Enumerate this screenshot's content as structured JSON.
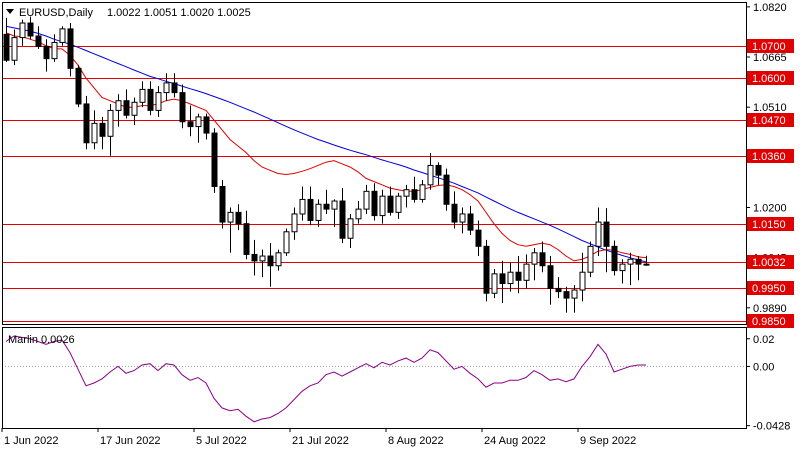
{
  "chart_data": [
    {
      "type": "candlestick",
      "symbol_label": "EURUSD,Daily",
      "ohlc_label": "1.0022 1.0051 1.0020 1.0025",
      "ylim": [
        0.984,
        1.0835
      ],
      "y_ticks": [
        "1.0820",
        "1.0665",
        "1.0510",
        "1.0360",
        "1.0200",
        "1.0045",
        "0.9890"
      ],
      "x_ticks": [
        "1 Jun 2022",
        "17 Jun 2022",
        "5 Jul 2022",
        "21 Jul 2022",
        "8 Aug 2022",
        "24 Aug 2022",
        "9 Sep 2022"
      ],
      "levels": [
        {
          "value": 1.07,
          "label": "1.0700"
        },
        {
          "value": 1.06,
          "label": "1.0600"
        },
        {
          "value": 1.047,
          "label": "1.0470"
        },
        {
          "value": 1.036,
          "label": "1.0360"
        },
        {
          "value": 1.015,
          "label": "1.0150"
        },
        {
          "value": 1.0032,
          "label": "1.0032"
        },
        {
          "value": 0.995,
          "label": "0.9950"
        },
        {
          "value": 0.985,
          "label": "0.9850"
        }
      ],
      "level_color": "#e00000",
      "ma_fast_color": "#e00000",
      "ma_slow_color": "#0000e0",
      "candles": [
        [
          1.0735,
          1.0786,
          1.065,
          1.0655
        ],
        [
          1.0655,
          1.075,
          1.064,
          1.0725
        ],
        [
          1.0725,
          1.078,
          1.07,
          1.077
        ],
        [
          1.077,
          1.079,
          1.072,
          1.073
        ],
        [
          1.073,
          1.076,
          1.069,
          1.0698
        ],
        [
          1.0698,
          1.072,
          1.062,
          1.066
        ],
        [
          1.066,
          1.0735,
          1.065,
          1.071
        ],
        [
          1.071,
          1.076,
          1.07,
          1.0752
        ],
        [
          1.0752,
          1.077,
          1.0605,
          1.063
        ],
        [
          1.063,
          1.064,
          1.051,
          1.052
        ],
        [
          1.052,
          1.0545,
          1.038,
          1.04
        ],
        [
          1.04,
          1.05,
          1.038,
          1.046
        ],
        [
          1.046,
          1.048,
          1.038,
          1.042
        ],
        [
          1.042,
          1.052,
          1.036,
          1.05
        ],
        [
          1.05,
          1.055,
          1.045,
          1.053
        ],
        [
          1.053,
          1.0565,
          1.0475,
          1.0485
        ],
        [
          1.0485,
          1.054,
          1.0455,
          1.0525
        ],
        [
          1.0525,
          1.059,
          1.051,
          1.0565
        ],
        [
          1.0565,
          1.059,
          1.0485,
          1.05
        ],
        [
          1.05,
          1.0575,
          1.048,
          1.0555
        ],
        [
          1.0555,
          1.0615,
          1.053,
          1.0585
        ],
        [
          1.0585,
          1.0615,
          1.054,
          1.0555
        ],
        [
          1.0555,
          1.058,
          1.0445,
          1.0465
        ],
        [
          1.0465,
          1.0515,
          1.042,
          1.045
        ],
        [
          1.045,
          1.049,
          1.04,
          1.048
        ],
        [
          1.048,
          1.049,
          1.041,
          1.043
        ],
        [
          1.043,
          1.0445,
          1.0245,
          1.0265
        ],
        [
          1.0265,
          1.0285,
          1.0135,
          1.0155
        ],
        [
          1.0155,
          1.02,
          1.006,
          1.0185
        ],
        [
          1.0185,
          1.021,
          1.013,
          1.015
        ],
        [
          1.015,
          1.019,
          1.004,
          1.0055
        ],
        [
          1.0055,
          1.01,
          0.999,
          1.0035
        ],
        [
          1.0035,
          1.007,
          0.9985,
          1.005
        ],
        [
          1.005,
          1.009,
          0.9955,
          1.002
        ],
        [
          1.002,
          1.007,
          1.0005,
          1.006
        ],
        [
          1.006,
          1.0135,
          1.005,
          1.0125
        ],
        [
          1.0125,
          1.02,
          1.01,
          1.018
        ],
        [
          1.018,
          1.0265,
          1.016,
          1.0225
        ],
        [
          1.0225,
          1.0265,
          1.0145,
          1.016
        ],
        [
          1.016,
          1.0225,
          1.014,
          1.021
        ],
        [
          1.021,
          1.0255,
          1.018,
          1.0195
        ],
        [
          1.0195,
          1.0225,
          1.014,
          1.022
        ],
        [
          1.022,
          1.026,
          1.009,
          1.0105
        ],
        [
          1.0105,
          1.018,
          1.0075,
          1.0165
        ],
        [
          1.0165,
          1.022,
          1.015,
          1.0195
        ],
        [
          1.0195,
          1.027,
          1.018,
          1.025
        ],
        [
          1.025,
          1.0275,
          1.016,
          1.0175
        ],
        [
          1.0175,
          1.0255,
          1.015,
          1.0235
        ],
        [
          1.0235,
          1.0265,
          1.0175,
          1.0185
        ],
        [
          1.0185,
          1.0245,
          1.0165,
          1.0235
        ],
        [
          1.0235,
          1.027,
          1.02,
          1.0255
        ],
        [
          1.0255,
          1.0295,
          1.0215,
          1.0225
        ],
        [
          1.0225,
          1.0285,
          1.0215,
          1.027
        ],
        [
          1.027,
          1.0368,
          1.0255,
          1.033
        ],
        [
          1.033,
          1.034,
          1.027,
          1.03
        ],
        [
          1.03,
          1.032,
          1.019,
          1.021
        ],
        [
          1.021,
          1.025,
          1.0135,
          1.0155
        ],
        [
          1.0155,
          1.02,
          1.012,
          1.018
        ],
        [
          1.018,
          1.0205,
          1.0115,
          1.013
        ],
        [
          1.013,
          1.016,
          1.005,
          1.008
        ],
        [
          1.008,
          1.01,
          0.991,
          0.9935
        ],
        [
          0.9935,
          1.001,
          0.992,
          0.9995
        ],
        [
          0.9995,
          1.0035,
          0.9905,
          0.9965
        ],
        [
          0.9965,
          1.003,
          0.994,
          1.0
        ],
        [
          1.0,
          1.005,
          0.9935,
          0.9975
        ],
        [
          0.9975,
          1.0055,
          0.995,
          1.0025
        ],
        [
          1.0025,
          1.0075,
          0.9975,
          1.006
        ],
        [
          1.006,
          1.0095,
          1.0,
          1.002
        ],
        [
          1.002,
          1.005,
          0.99,
          0.995
        ],
        [
          0.995,
          0.9985,
          0.992,
          0.994
        ],
        [
          0.994,
          0.9955,
          0.9875,
          0.992
        ],
        [
          0.992,
          0.996,
          0.9875,
          0.9945
        ],
        [
          0.9945,
          1.006,
          0.991,
          1.0
        ],
        [
          1.0,
          1.0095,
          0.9985,
          1.008
        ],
        [
          1.008,
          1.02,
          1.005,
          1.0155
        ],
        [
          1.0155,
          1.0198,
          1.0,
          1.008
        ],
        [
          1.008,
          1.0098,
          0.999,
          1.0005
        ],
        [
          1.0005,
          1.004,
          0.9965,
          1.0025
        ],
        [
          1.0025,
          1.006,
          0.996,
          1.004
        ],
        [
          1.004,
          1.005,
          0.9975,
          1.0025
        ],
        [
          1.0022,
          1.0051,
          1.002,
          1.0025
        ]
      ],
      "ma_fast": [
        1.074,
        1.073,
        1.0728,
        1.072,
        1.0712,
        1.07,
        1.069,
        1.069,
        1.067,
        1.064,
        1.06,
        1.057,
        1.054,
        1.053,
        1.052,
        1.051,
        1.051,
        1.0515,
        1.0515,
        1.052,
        1.053,
        1.0535,
        1.053,
        1.052,
        1.051,
        1.05,
        1.047,
        1.044,
        1.041,
        1.039,
        1.037,
        1.0345,
        1.0325,
        1.0315,
        1.0305,
        1.0302,
        1.0305,
        1.0312,
        1.032,
        1.033,
        1.034,
        1.0345,
        1.0335,
        1.0325,
        1.031,
        1.029,
        1.028,
        1.027,
        1.026,
        1.0255,
        1.025,
        1.025,
        1.0255,
        1.0262,
        1.0268,
        1.027,
        1.0265,
        1.0255,
        1.024,
        1.022,
        1.0185,
        1.015,
        1.012,
        1.0098,
        1.0085,
        1.008,
        1.0085,
        1.009,
        1.0085,
        1.007,
        1.005,
        1.0035,
        1.004,
        1.005,
        1.0065,
        1.007,
        1.0068,
        1.006,
        1.0055,
        1.0048,
        1.0045
      ],
      "ma_slow": [
        1.076,
        1.0755,
        1.075,
        1.0745,
        1.0738,
        1.073,
        1.072,
        1.0712,
        1.0705,
        1.0695,
        1.0685,
        1.0675,
        1.0665,
        1.0655,
        1.0645,
        1.0635,
        1.0625,
        1.0615,
        1.0605,
        1.0598,
        1.059,
        1.0583,
        1.0575,
        1.0567,
        1.056,
        1.0552,
        1.0543,
        1.0534,
        1.0525,
        1.0515,
        1.0505,
        1.0495,
        1.0484,
        1.0473,
        1.0462,
        1.0451,
        1.044,
        1.043,
        1.042,
        1.041,
        1.0402,
        1.0393,
        1.0385,
        1.0377,
        1.037,
        1.0363,
        1.0355,
        1.0347,
        1.034,
        1.0333,
        1.0325,
        1.0316,
        1.0308,
        1.03,
        1.0292,
        1.0284,
        1.0275,
        1.0265,
        1.0255,
        1.0245,
        1.0232,
        1.022,
        1.0208,
        1.0196,
        1.0185,
        1.0175,
        1.0165,
        1.0155,
        1.0145,
        1.0134,
        1.0122,
        1.011,
        1.0098,
        1.0088,
        1.0078,
        1.0068,
        1.006,
        1.0052,
        1.0045,
        1.0038,
        1.0032
      ]
    },
    {
      "type": "line",
      "indicator_label": "Marlin 0.0026",
      "ylim": [
        -0.0445,
        0.0285
      ],
      "y_ticks": [
        "0.02",
        "0.00",
        "-0.0428"
      ],
      "zero_line": true,
      "color": "#8b008b",
      "values": [
        0.018,
        0.022,
        0.021,
        0.02,
        0.018,
        0.016,
        0.018,
        0.019,
        0.01,
        -0.002,
        -0.014,
        -0.012,
        -0.009,
        -0.004,
        0.0,
        -0.005,
        -0.003,
        0.001,
        0.002,
        -0.003,
        0.002,
        0.001,
        -0.006,
        -0.01,
        -0.008,
        -0.012,
        -0.023,
        -0.03,
        -0.032,
        -0.031,
        -0.036,
        -0.04,
        -0.038,
        -0.037,
        -0.034,
        -0.03,
        -0.024,
        -0.018,
        -0.014,
        -0.012,
        -0.006,
        -0.004,
        -0.007,
        -0.004,
        -0.001,
        0.002,
        -0.001,
        0.003,
        0.001,
        0.004,
        0.006,
        0.003,
        0.006,
        0.012,
        0.01,
        0.004,
        -0.002,
        0.0,
        -0.005,
        -0.009,
        -0.015,
        -0.012,
        -0.012,
        -0.01,
        -0.01,
        -0.008,
        -0.003,
        -0.006,
        -0.01,
        -0.009,
        -0.011,
        -0.009,
        0.0,
        0.007,
        0.016,
        0.009,
        -0.004,
        -0.002,
        0.0,
        0.001,
        0.001
      ]
    }
  ]
}
